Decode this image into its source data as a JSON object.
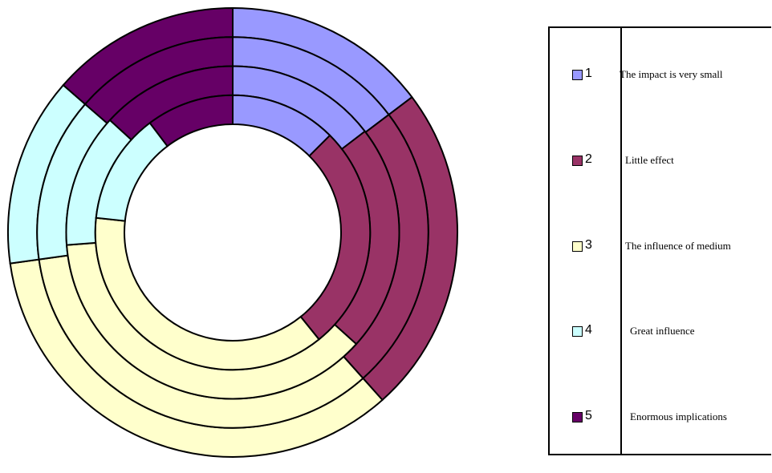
{
  "chart_data": {
    "type": "donut",
    "title": "",
    "categories": [
      "1",
      "2",
      "3",
      "4",
      "5"
    ],
    "category_labels": [
      "The impact is very small",
      "Little effect",
      "The influence of medium",
      "Great influence",
      "Enormous implications"
    ],
    "colors": [
      "#9999ff",
      "#993366",
      "#ffffcc",
      "#ccffff",
      "#660066"
    ],
    "series": [
      {
        "values": [
          14.7,
          23.7,
          34.4,
          13.6,
          13.6
        ]
      },
      {
        "values": [
          14.7,
          23.7,
          34.4,
          13.6,
          13.6
        ]
      },
      {
        "values": [
          14.6,
          22.1,
          37.1,
          13.0,
          13.2
        ]
      },
      {
        "values": [
          12.5,
          26.7,
          37.5,
          13.0,
          10.3
        ]
      }
    ],
    "legend_position": "right"
  },
  "legend": {
    "items": [
      {
        "key": "1",
        "label": "The impact is very small"
      },
      {
        "key": "2",
        "label": "Little effect"
      },
      {
        "key": "3",
        "label": "The influence of medium"
      },
      {
        "key": "4",
        "label": "Great influence"
      },
      {
        "key": "5",
        "label": "Enormous implications"
      }
    ]
  }
}
